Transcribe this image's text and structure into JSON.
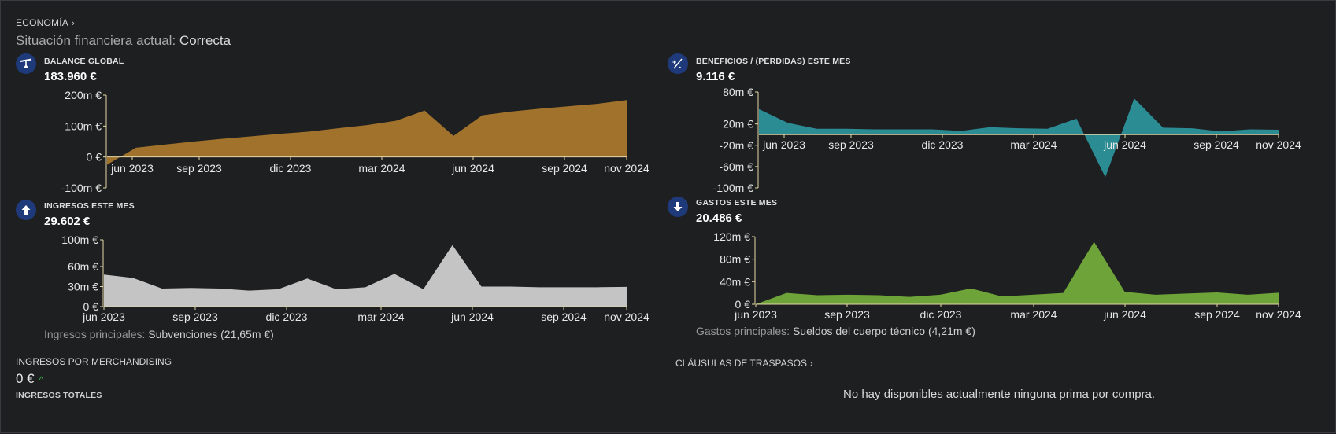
{
  "breadcrumb": {
    "label": "ECONOMÍA",
    "chevron": "›"
  },
  "status": {
    "label": "Situación financiera actual:",
    "value": "Correcta"
  },
  "palette": {
    "bg": "#1e1f21",
    "balance": "#a0722c",
    "beneficios": "#2b8c94",
    "ingresos": "#c4c4c4",
    "gastos": "#6ea33a",
    "icon_bg": "#1f3a7a",
    "positive": "#3cb043"
  },
  "sections": {
    "balance": {
      "title": "BALANCE GLOBAL",
      "value": "183.960 €",
      "icon": "scale-icon"
    },
    "beneficios": {
      "title": "BENEFICIOS / (PÉRDIDAS) ESTE MES",
      "value": "9.116 €",
      "icon": "percent-icon"
    },
    "ingresos": {
      "title": "INGRESOS ESTE MES",
      "value": "29.602 €",
      "icon": "arrow-up-icon",
      "note_label": "Ingresos principales:",
      "note_value": "Subvenciones (21,65m €)"
    },
    "gastos": {
      "title": "GASTOS ESTE MES",
      "value": "20.486 €",
      "icon": "arrow-down-icon",
      "note_label": "Gastos principales:",
      "note_value": "Sueldos del cuerpo técnico (4,21m €)"
    }
  },
  "merchandising": {
    "title": "INGRESOS POR MERCHANDISING",
    "value": "0 €",
    "trend": "^",
    "subtitle": "INGRESOS TOTALES"
  },
  "clausulas": {
    "title": "CLÁUSULAS DE TRASPASOS",
    "chevron": "›",
    "empty_text": "No hay disponibles actualmente ninguna prima por compra."
  },
  "chart_data": [
    {
      "id": "balance",
      "type": "area",
      "x": [
        "may 2023",
        "jun 2023",
        "jul 2023",
        "ago 2023",
        "sep 2023",
        "oct 2023",
        "nov 2023",
        "dic 2023",
        "ene 2024",
        "feb 2024",
        "mar 2024",
        "abr 2024",
        "may 2024",
        "jun 2024",
        "jul 2024",
        "ago 2024",
        "sep 2024",
        "oct 2024",
        "nov 2024"
      ],
      "values": [
        -25,
        30,
        40,
        50,
        59,
        67,
        75,
        82,
        93,
        103,
        117,
        150,
        68,
        135,
        147,
        156,
        164,
        172,
        183.96
      ],
      "x_ticks": [
        "jun 2023",
        "sep 2023",
        "dic 2023",
        "mar 2024",
        "jun 2024",
        "sep 2024",
        "nov 2024"
      ],
      "y_ticks": [
        "200m €",
        "100m €",
        "0 €",
        "-100m €"
      ],
      "y_tick_values": [
        200,
        100,
        0,
        -100
      ],
      "ylim": [
        -100,
        200
      ],
      "unit": "millones €"
    },
    {
      "id": "beneficios",
      "type": "area",
      "x": [
        "may 2023",
        "jun 2023",
        "jul 2023",
        "ago 2023",
        "sep 2023",
        "oct 2023",
        "nov 2023",
        "dic 2023",
        "ene 2024",
        "feb 2024",
        "mar 2024",
        "abr 2024",
        "may 2024",
        "jun 2024",
        "jul 2024",
        "ago 2024",
        "sep 2024",
        "oct 2024",
        "nov 2024"
      ],
      "values": [
        48,
        22,
        11,
        11,
        10,
        10,
        10,
        7,
        14,
        12,
        11,
        30,
        -80,
        68,
        13,
        12,
        6,
        10,
        9.116
      ],
      "x_ticks": [
        "jun 2023",
        "sep 2023",
        "dic 2023",
        "mar 2024",
        "jun 2024",
        "sep 2024",
        "nov 2024"
      ],
      "y_ticks": [
        "80m €",
        "20m €",
        "-20m €",
        "-60m €",
        "-100m €"
      ],
      "y_tick_values": [
        80,
        20,
        -20,
        -60,
        -100
      ],
      "ylim": [
        -100,
        80
      ],
      "unit": "millones €"
    },
    {
      "id": "ingresos",
      "type": "area",
      "x": [
        "may 2023",
        "jun 2023",
        "jul 2023",
        "ago 2023",
        "sep 2023",
        "oct 2023",
        "nov 2023",
        "dic 2023",
        "ene 2024",
        "feb 2024",
        "mar 2024",
        "abr 2024",
        "may 2024",
        "jun 2024",
        "jul 2024",
        "ago 2024",
        "sep 2024",
        "oct 2024",
        "nov 2024"
      ],
      "values": [
        48,
        43,
        27,
        28,
        27,
        24,
        26,
        42,
        26,
        29,
        49,
        26,
        92,
        30,
        30,
        29,
        29,
        29,
        29.602
      ],
      "x_ticks": [
        "jun 2023",
        "sep 2023",
        "dic 2023",
        "mar 2024",
        "jun 2024",
        "sep 2024",
        "nov 2024"
      ],
      "y_ticks": [
        "100m €",
        "60m €",
        "30m €",
        "0 €"
      ],
      "y_tick_values": [
        100,
        60,
        30,
        0
      ],
      "ylim": [
        0,
        100
      ],
      "unit": "millones €"
    },
    {
      "id": "gastos",
      "type": "area",
      "x": [
        "jun 2023",
        "jul 2023",
        "ago 2023",
        "sep 2023",
        "oct 2023",
        "nov 2023",
        "dic 2023",
        "ene 2024",
        "feb 2024",
        "mar 2024",
        "abr 2024",
        "may 2024",
        "jun 2024",
        "jul 2024",
        "ago 2024",
        "sep 2024",
        "oct 2024",
        "nov 2024"
      ],
      "values": [
        0,
        20,
        16,
        17,
        16,
        13,
        17,
        28,
        14,
        17,
        20,
        111,
        22,
        17,
        19,
        21,
        17,
        20.486
      ],
      "x_ticks": [
        "jun 2023",
        "sep 2023",
        "dic 2023",
        "mar 2024",
        "jun 2024",
        "sep 2024",
        "nov 2024"
      ],
      "y_ticks": [
        "120m €",
        "80m €",
        "40m €",
        "0 €"
      ],
      "y_tick_values": [
        120,
        80,
        40,
        0
      ],
      "ylim": [
        0,
        120
      ],
      "unit": "millones €"
    }
  ]
}
